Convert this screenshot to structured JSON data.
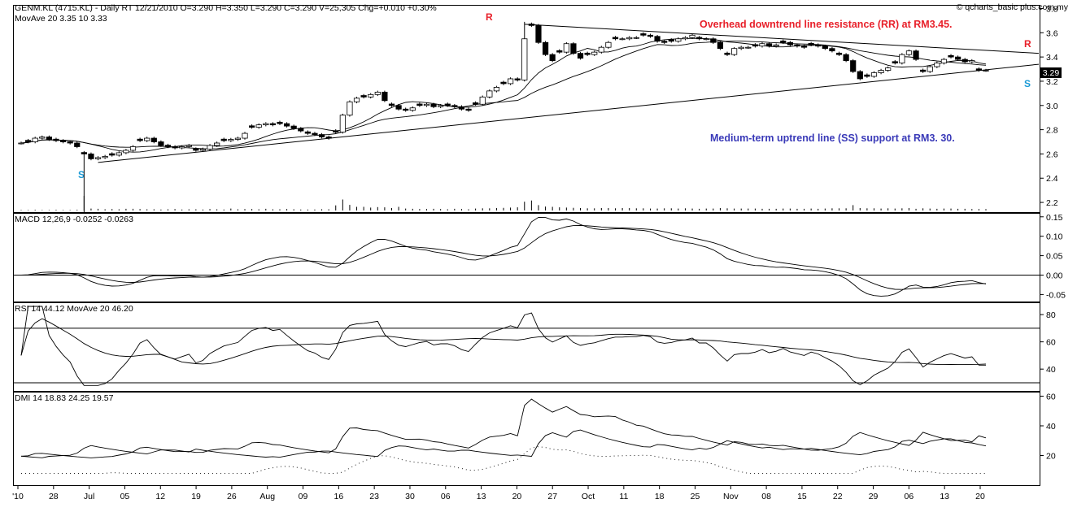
{
  "header": {
    "main": "GENM.KL (4715.KL) - Daily RT   12/21/2010   O=3.290   H=3.350   L=3.290   C=3.290   V=25,305   Chg=+0.010   +0.30%",
    "movave": "MovAve 20  3.35   10  3.33",
    "watermark": "© qcharts_basic plus.com.my"
  },
  "colors": {
    "annotation_red": "#e8202a",
    "annotation_blue": "#3a3ab8",
    "support_marker": "#1a9ad6",
    "resistance_marker": "#e8202a"
  },
  "chart_data": [
    {
      "type": "candlestick",
      "panel": "price",
      "yticks": [
        2.2,
        2.4,
        2.6,
        2.8,
        3.0,
        3.2,
        3.4,
        3.6,
        3.8
      ],
      "ylim": [
        2.12,
        3.83
      ],
      "last_price": "3.29",
      "x_labels": [
        "'10",
        "28",
        "Jul",
        "05",
        "12",
        "19",
        "26",
        "Aug",
        "09",
        "16",
        "23",
        "30",
        "06",
        "13",
        "20",
        "27",
        "Oct",
        "11",
        "18",
        "25",
        "Nov",
        "08",
        "15",
        "22",
        "29",
        "06",
        "13",
        "20"
      ],
      "close": [
        2.69,
        2.7,
        2.73,
        2.74,
        2.72,
        2.71,
        2.7,
        2.69,
        2.66,
        2.6,
        2.56,
        2.57,
        2.58,
        2.59,
        2.61,
        2.63,
        2.66,
        2.71,
        2.73,
        2.7,
        2.67,
        2.66,
        2.65,
        2.66,
        2.67,
        2.63,
        2.64,
        2.67,
        2.69,
        2.71,
        2.72,
        2.73,
        2.77,
        2.82,
        2.84,
        2.85,
        2.84,
        2.85,
        2.83,
        2.81,
        2.79,
        2.77,
        2.76,
        2.74,
        2.73,
        2.78,
        2.92,
        3.03,
        3.06,
        3.07,
        3.09,
        3.11,
        3.04,
        3.0,
        2.97,
        2.96,
        2.98,
        3.0,
        3.01,
        2.99,
        3.0,
        3.0,
        2.99,
        2.97,
        2.96,
        3.01,
        3.07,
        3.12,
        3.15,
        3.18,
        3.22,
        3.21,
        3.55,
        3.66,
        3.52,
        3.42,
        3.37,
        3.44,
        3.51,
        3.43,
        3.39,
        3.42,
        3.44,
        3.48,
        3.52,
        3.55,
        3.55,
        3.56,
        3.56,
        3.58,
        3.57,
        3.53,
        3.52,
        3.53,
        3.55,
        3.56,
        3.58,
        3.55,
        3.55,
        3.52,
        3.47,
        3.42,
        3.47,
        3.48,
        3.48,
        3.49,
        3.51,
        3.49,
        3.5,
        3.52,
        3.5,
        3.49,
        3.48,
        3.5,
        3.49,
        3.47,
        3.45,
        3.42,
        3.37,
        3.28,
        3.22,
        3.24,
        3.27,
        3.29,
        3.31,
        3.35,
        3.42,
        3.45,
        3.38,
        3.28,
        3.32,
        3.35,
        3.38,
        3.4,
        3.38,
        3.36,
        3.37,
        3.29,
        3.29
      ],
      "series": [
        {
          "name": "MovAve 20"
        },
        {
          "name": "MovAve 10"
        }
      ],
      "volume": [
        0.02,
        0.02,
        0.03,
        0.02,
        0.02,
        0.03,
        0.02,
        0.02,
        0.03,
        0.6,
        0.08,
        0.07,
        0.05,
        0.06,
        0.05,
        0.07,
        0.07,
        0.06,
        0.05,
        0.05,
        0.04,
        0.05,
        0.06,
        0.04,
        0.05,
        0.05,
        0.04,
        0.06,
        0.05,
        0.04,
        0.08,
        0.05,
        0.06,
        0.06,
        0.05,
        0.07,
        0.05,
        0.05,
        0.06,
        0.05,
        0.04,
        0.04,
        0.04,
        0.05,
        0.05,
        0.21,
        0.45,
        0.23,
        0.15,
        0.15,
        0.12,
        0.14,
        0.13,
        0.1,
        0.15,
        0.08,
        0.07,
        0.06,
        0.06,
        0.07,
        0.06,
        0.05,
        0.07,
        0.06,
        0.05,
        0.08,
        0.09,
        0.09,
        0.1,
        0.11,
        0.12,
        0.13,
        0.36,
        0.41,
        0.22,
        0.16,
        0.15,
        0.13,
        0.12,
        0.11,
        0.1,
        0.09,
        0.09,
        0.1,
        0.1,
        0.09,
        0.1,
        0.1,
        0.09,
        0.09,
        0.08,
        0.08,
        0.09,
        0.09,
        0.08,
        0.09,
        0.08,
        0.07,
        0.08,
        0.08,
        0.1,
        0.09,
        0.08,
        0.08,
        0.08,
        0.08,
        0.07,
        0.07,
        0.07,
        0.08,
        0.08,
        0.07,
        0.07,
        0.08,
        0.07,
        0.08,
        0.09,
        0.09,
        0.09,
        0.22,
        0.1,
        0.09,
        0.09,
        0.08,
        0.09,
        0.08,
        0.09,
        0.1,
        0.07,
        0.09,
        0.08,
        0.07,
        0.08,
        0.08,
        0.07,
        0.07,
        0.06,
        0.06,
        0.06
      ]
    },
    {
      "type": "line",
      "panel": "macd",
      "header": "MACD 12,26,9  -0.0252  -0.0263",
      "yticks": [
        "0.15",
        "0.10",
        "0.05",
        "0.00",
        "-0.05"
      ],
      "ylim": [
        -0.068,
        0.16
      ]
    },
    {
      "type": "line",
      "panel": "rsi",
      "header": "RSI 14  44.12   MovAve 20  46.20",
      "yticks": [
        40,
        60,
        80
      ],
      "ylim": [
        24,
        89
      ]
    },
    {
      "type": "line",
      "panel": "dmi",
      "header": "DMI 14  18.83  24.25  19.57",
      "yticks": [
        20,
        40,
        60
      ],
      "ylim": [
        0,
        63
      ]
    }
  ],
  "annotations": {
    "resistance": "Overhead downtrend line resistance (RR) at RM3.45.",
    "support": "Medium-term uptrend line (SS) support at RM3. 30.",
    "r_peak": "R",
    "r_right": "R",
    "s_left": "S",
    "s_right": "S"
  }
}
